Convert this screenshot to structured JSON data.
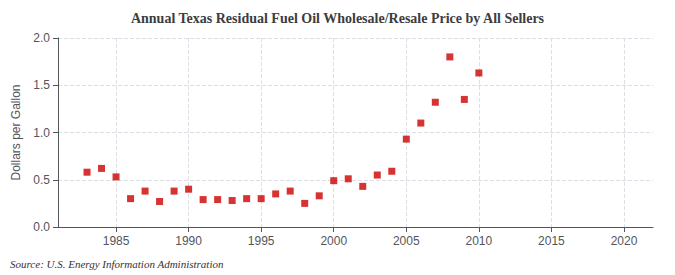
{
  "chart_data": {
    "type": "scatter",
    "title": "Annual Texas Residual Fuel Oil Wholesale/Resale Price by All Sellers",
    "ylabel": "Dollars per Gallon",
    "annotation": "Source: U.S. Energy Information Administration",
    "x": [
      1983,
      1984,
      1985,
      1986,
      1987,
      1988,
      1989,
      1990,
      1991,
      1992,
      1993,
      1994,
      1995,
      1996,
      1997,
      1998,
      1999,
      2000,
      2001,
      2002,
      2003,
      2004,
      2005,
      2006,
      2007,
      2008,
      2009,
      2010
    ],
    "values": [
      0.58,
      0.62,
      0.53,
      0.3,
      0.38,
      0.27,
      0.38,
      0.4,
      0.29,
      0.29,
      0.28,
      0.3,
      0.3,
      0.35,
      0.38,
      0.25,
      0.33,
      0.49,
      0.51,
      0.43,
      0.55,
      0.59,
      0.93,
      1.1,
      1.32,
      1.8,
      1.35,
      1.63
    ],
    "color": "#cc0000",
    "marker": "square",
    "xlim": [
      1981,
      2022
    ],
    "ylim": [
      0.0,
      2.0
    ],
    "xticks": [
      1985,
      1990,
      1995,
      2000,
      2005,
      2010,
      2015,
      2020
    ],
    "yticks": [
      {
        "value": 0,
        "label": "0.0"
      },
      0.5,
      {
        "value": 1,
        "label": "1.0"
      },
      1.5,
      {
        "value": 2,
        "label": "2.0"
      }
    ],
    "grid": true
  }
}
